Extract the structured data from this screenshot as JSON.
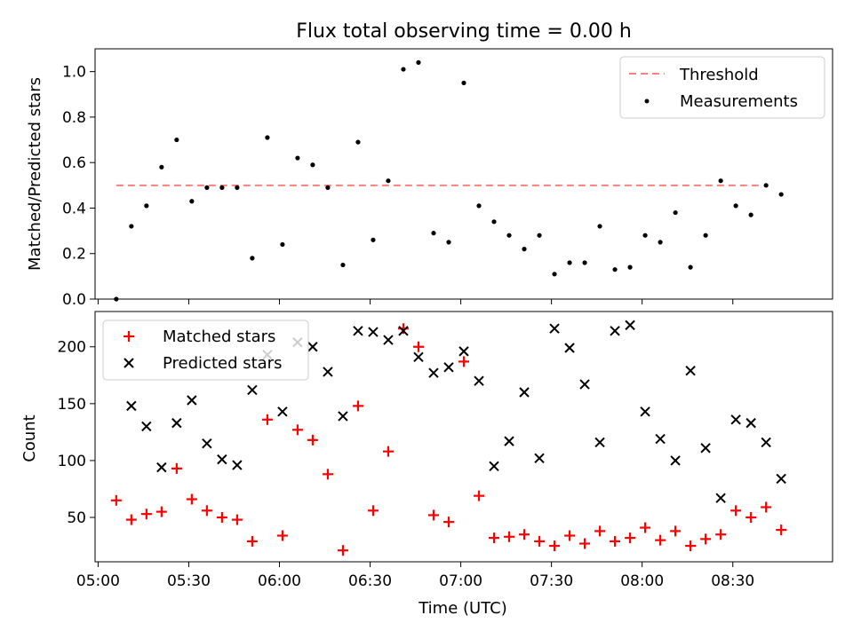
{
  "chart_data": [
    {
      "type": "scatter",
      "title": "Flux total observing time = 0.00 h",
      "xlabel": "",
      "ylabel": "Matched/Predicted stars",
      "ylim": [
        0,
        1.1
      ],
      "xlim": [
        "04:59",
        "09:03"
      ],
      "grid": false,
      "legend_placement": "top-right",
      "yticks": [
        "0.0",
        "0.2",
        "0.4",
        "0.6",
        "0.8",
        "1.0"
      ],
      "threshold": {
        "name": "Threshold",
        "value": 0.5,
        "x_start": "05:06",
        "x_end": "08:40",
        "color": "#ff7f7f"
      },
      "series": [
        {
          "name": "Measurements",
          "color": "#000000",
          "x": [
            "05:06",
            "05:11",
            "05:16",
            "05:21",
            "05:26",
            "05:31",
            "05:36",
            "05:41",
            "05:46",
            "05:51",
            "05:56",
            "06:01",
            "06:06",
            "06:11",
            "06:16",
            "06:21",
            "06:26",
            "06:31",
            "06:36",
            "06:41",
            "06:46",
            "06:51",
            "06:56",
            "07:01",
            "07:06",
            "07:11",
            "07:16",
            "07:21",
            "07:26",
            "07:31",
            "07:36",
            "07:41",
            "07:46",
            "07:51",
            "07:56",
            "08:01",
            "08:06",
            "08:11",
            "08:16",
            "08:21",
            "08:26",
            "08:31",
            "08:36",
            "08:41",
            "08:46"
          ],
          "y": [
            0.0,
            0.32,
            0.41,
            0.58,
            0.7,
            0.43,
            0.49,
            0.49,
            0.49,
            0.18,
            0.71,
            0.24,
            0.62,
            0.59,
            0.49,
            0.15,
            0.69,
            0.26,
            0.52,
            1.01,
            1.04,
            0.29,
            0.25,
            0.95,
            0.41,
            0.34,
            0.28,
            0.22,
            0.28,
            0.11,
            0.16,
            0.16,
            0.32,
            0.13,
            0.14,
            0.28,
            0.25,
            0.38,
            0.14,
            0.28,
            0.52,
            0.41,
            0.37,
            0.5,
            0.46
          ]
        }
      ]
    },
    {
      "type": "scatter",
      "title": "",
      "xlabel": "Time (UTC)",
      "ylabel": "Count",
      "ylim": [
        11,
        231
      ],
      "xlim": [
        "04:59",
        "09:03"
      ],
      "grid": false,
      "legend_placement": "top-left",
      "yticks": [
        "50",
        "100",
        "150",
        "200"
      ],
      "xticks": [
        "05:00",
        "05:30",
        "06:00",
        "06:30",
        "07:00",
        "07:30",
        "08:00",
        "08:30"
      ],
      "series": [
        {
          "name": "Matched stars",
          "marker": "plus",
          "color": "#ff0000",
          "x": [
            "05:06",
            "05:11",
            "05:16",
            "05:21",
            "05:26",
            "05:31",
            "05:36",
            "05:41",
            "05:46",
            "05:51",
            "05:56",
            "06:01",
            "06:06",
            "06:11",
            "06:16",
            "06:21",
            "06:26",
            "06:31",
            "06:36",
            "06:41",
            "06:46",
            "06:51",
            "06:56",
            "07:01",
            "07:06",
            "07:11",
            "07:16",
            "07:21",
            "07:26",
            "07:31",
            "07:36",
            "07:41",
            "07:46",
            "07:51",
            "07:56",
            "08:01",
            "08:06",
            "08:11",
            "08:16",
            "08:21",
            "08:26",
            "08:31",
            "08:36",
            "08:41",
            "08:46"
          ],
          "y": [
            65,
            48,
            53,
            55,
            93,
            66,
            56,
            50,
            48,
            29,
            136,
            34,
            127,
            118,
            88,
            21,
            148,
            56,
            108,
            216,
            200,
            52,
            46,
            187,
            69,
            32,
            33,
            35,
            29,
            25,
            34,
            27,
            38,
            29,
            32,
            41,
            30,
            38,
            25,
            31,
            35,
            56,
            50,
            59,
            39
          ]
        },
        {
          "name": "Predicted stars",
          "marker": "x",
          "color": "#000000",
          "x": [
            "05:06",
            "05:11",
            "05:16",
            "05:21",
            "05:26",
            "05:31",
            "05:36",
            "05:41",
            "05:46",
            "05:51",
            "05:56",
            "06:01",
            "06:06",
            "06:11",
            "06:16",
            "06:21",
            "06:26",
            "06:31",
            "06:36",
            "06:41",
            "06:46",
            "06:51",
            "06:56",
            "07:01",
            "07:06",
            "07:11",
            "07:16",
            "07:21",
            "07:26",
            "07:31",
            "07:36",
            "07:41",
            "07:46",
            "07:51",
            "07:56",
            "08:01",
            "08:06",
            "08:11",
            "08:16",
            "08:21",
            "08:26",
            "08:31",
            "08:36",
            "08:41",
            "08:46"
          ],
          "y": [
            null,
            148,
            130,
            94,
            133,
            153,
            115,
            101,
            96,
            162,
            193,
            143,
            204,
            200,
            178,
            139,
            214,
            213,
            206,
            214,
            191,
            177,
            182,
            196,
            170,
            95,
            117,
            160,
            102,
            216,
            199,
            167,
            116,
            214,
            219,
            143,
            119,
            100,
            179,
            111,
            67,
            136,
            133,
            116,
            84
          ]
        }
      ]
    }
  ]
}
